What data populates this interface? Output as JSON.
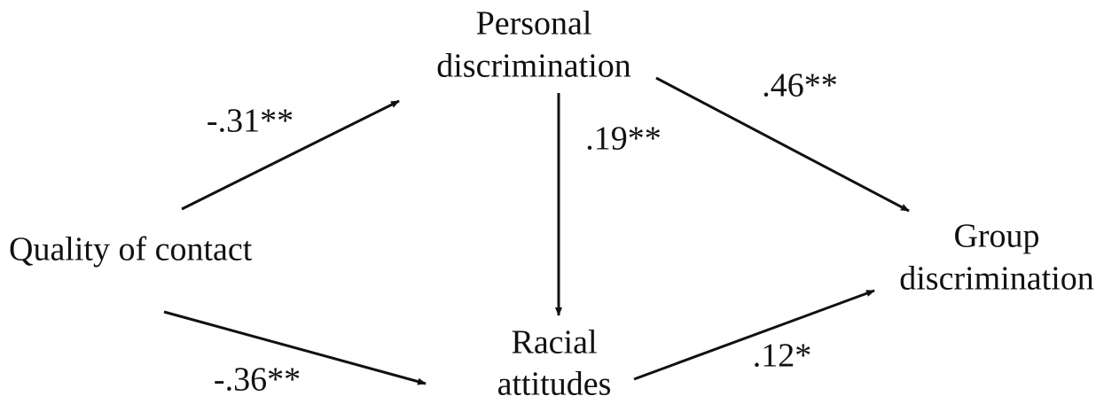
{
  "nodes": [
    {
      "lines": [
        "Personal",
        "discrimination"
      ]
    },
    {
      "lines": [
        "Quality of contact"
      ]
    },
    {
      "lines": [
        "Group",
        "discrimination"
      ]
    },
    {
      "lines": [
        "Racial",
        "attitudes"
      ]
    }
  ],
  "edges": [
    {
      "label": "-.31**"
    },
    {
      "label": ".46**"
    },
    {
      "label": ".19**"
    },
    {
      "label": "-.36**"
    },
    {
      "label": ".12*"
    }
  ]
}
